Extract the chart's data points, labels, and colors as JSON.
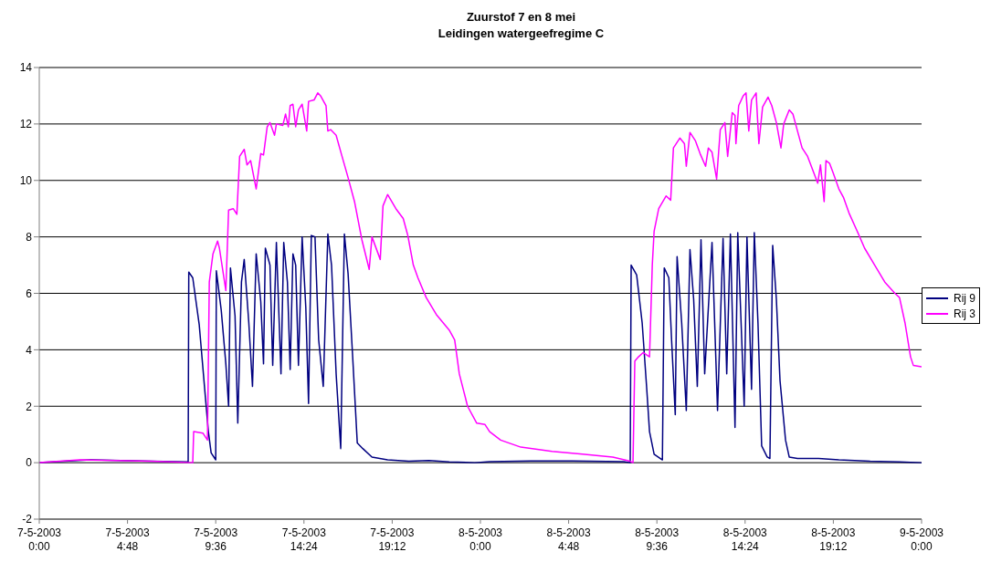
{
  "chart_data": {
    "type": "line",
    "title": "Zuurstof 7 en 8 mei",
    "subtitle": "Leidingen watergeefregime C",
    "xlim": [
      "2003-05-07T00:00",
      "2003-05-09T00:00"
    ],
    "xticks": [
      {
        "value": "2003-05-07T00:00",
        "label": "7-5-2003 0:00"
      },
      {
        "value": "2003-05-07T04:48",
        "label": "7-5-2003 4:48"
      },
      {
        "value": "2003-05-07T09:36",
        "label": "7-5-2003 9:36"
      },
      {
        "value": "2003-05-07T14:24",
        "label": "7-5-2003 14:24"
      },
      {
        "value": "2003-05-07T19:12",
        "label": "7-5-2003 19:12"
      },
      {
        "value": "2003-05-08T00:00",
        "label": "8-5-2003 0:00"
      },
      {
        "value": "2003-05-08T04:48",
        "label": "8-5-2003 4:48"
      },
      {
        "value": "2003-05-08T09:36",
        "label": "8-5-2003 9:36"
      },
      {
        "value": "2003-05-08T14:24",
        "label": "8-5-2003 14:24"
      },
      {
        "value": "2003-05-08T19:12",
        "label": "8-5-2003 19:12"
      },
      {
        "value": "2003-05-09T00:00",
        "label": "9-5-2003 0:00"
      }
    ],
    "ylim": [
      -2,
      14
    ],
    "yticks": [
      -2,
      0,
      2,
      4,
      6,
      8,
      10,
      12,
      14
    ],
    "grid": "y",
    "legend": "right",
    "series": [
      {
        "name": "Rij 9",
        "color": "#000080",
        "x": [
          "2003-05-07T00:00",
          "2003-05-07T02:48",
          "2003-05-07T06:06",
          "2003-05-07T08:06",
          "2003-05-07T08:08",
          "2003-05-07T08:21",
          "2003-05-07T08:42",
          "2003-05-07T09:00",
          "2003-05-07T09:12",
          "2003-05-07T09:21",
          "2003-05-07T09:36",
          "2003-05-07T09:38",
          "2003-05-07T09:54",
          "2003-05-07T10:09",
          "2003-05-07T10:18",
          "2003-05-07T10:24",
          "2003-05-07T10:39",
          "2003-05-07T10:48",
          "2003-05-07T11:00",
          "2003-05-07T11:09",
          "2003-05-07T11:24",
          "2003-05-07T11:36",
          "2003-05-07T11:48",
          "2003-05-07T12:03",
          "2003-05-07T12:12",
          "2003-05-07T12:18",
          "2003-05-07T12:33",
          "2003-05-07T12:42",
          "2003-05-07T12:54",
          "2003-05-07T13:09",
          "2003-05-07T13:18",
          "2003-05-07T13:30",
          "2003-05-07T13:39",
          "2003-05-07T13:48",
          "2003-05-07T13:57",
          "2003-05-07T14:06",
          "2003-05-07T14:18",
          "2003-05-07T14:30",
          "2003-05-07T14:39",
          "2003-05-07T14:48",
          "2003-05-07T15:00",
          "2003-05-07T15:12",
          "2003-05-07T15:27",
          "2003-05-07T15:42",
          "2003-05-07T15:54",
          "2003-05-07T16:09",
          "2003-05-07T16:24",
          "2003-05-07T16:36",
          "2003-05-07T16:48",
          "2003-05-07T17:03",
          "2003-05-07T17:18",
          "2003-05-07T17:36",
          "2003-05-07T18:06",
          "2003-05-07T18:57",
          "2003-05-07T20:06",
          "2003-05-07T21:12",
          "2003-05-07T22:18",
          "2003-05-07T23:42",
          "2003-05-08T00:30",
          "2003-05-08T02:45",
          "2003-05-08T05:00",
          "2003-05-08T07:48",
          "2003-05-08T08:09",
          "2003-05-08T08:12",
          "2003-05-08T08:30",
          "2003-05-08T08:48",
          "2003-05-08T09:03",
          "2003-05-08T09:12",
          "2003-05-08T09:27",
          "2003-05-08T09:54",
          "2003-05-08T10:00",
          "2003-05-08T10:15",
          "2003-05-08T10:24",
          "2003-05-08T10:36",
          "2003-05-08T10:42",
          "2003-05-08T10:57",
          "2003-05-08T11:12",
          "2003-05-08T11:24",
          "2003-05-08T11:36",
          "2003-05-08T11:48",
          "2003-05-08T12:00",
          "2003-05-08T12:12",
          "2003-05-08T12:36",
          "2003-05-08T12:54",
          "2003-05-08T13:12",
          "2003-05-08T13:24",
          "2003-05-08T13:36",
          "2003-05-08T13:51",
          "2003-05-08T14:00",
          "2003-05-08T14:21",
          "2003-05-08T14:30",
          "2003-05-08T14:45",
          "2003-05-08T14:54",
          "2003-05-08T15:06",
          "2003-05-08T15:18",
          "2003-05-08T15:36",
          "2003-05-08T15:45",
          "2003-05-08T15:54",
          "2003-05-08T16:06",
          "2003-05-08T16:18",
          "2003-05-08T16:36",
          "2003-05-08T16:48",
          "2003-05-08T17:15",
          "2003-05-08T18:24",
          "2003-05-08T19:30",
          "2003-05-08T21:12",
          "2003-05-08T22:48",
          "2003-05-09T00:00"
        ],
        "values": [
          0,
          0.1,
          0.05,
          0.03,
          6.75,
          6.55,
          4.9,
          2.6,
          1.1,
          0.35,
          0.1,
          6.8,
          5.4,
          3.5,
          2.0,
          6.9,
          5.2,
          1.4,
          6.4,
          7.2,
          4.95,
          2.7,
          7.4,
          5.7,
          3.5,
          7.6,
          7.0,
          3.45,
          7.8,
          3.15,
          7.8,
          6.4,
          3.3,
          7.4,
          7.0,
          3.45,
          8.0,
          5.5,
          2.1,
          8.05,
          8.0,
          4.35,
          2.7,
          8.1,
          7.0,
          3.15,
          0.5,
          8.1,
          6.7,
          3.75,
          0.7,
          0.5,
          0.2,
          0.1,
          0.05,
          0.08,
          0.03,
          0,
          0.04,
          0.06,
          0.06,
          0.04,
          0,
          7.0,
          6.65,
          4.95,
          2.6,
          1.1,
          0.3,
          0.1,
          6.9,
          6.55,
          4.35,
          1.7,
          7.3,
          4.95,
          1.85,
          7.55,
          5.8,
          2.7,
          7.9,
          3.15,
          7.8,
          1.85,
          7.95,
          3.15,
          8.1,
          1.25,
          8.15,
          2.0,
          8.0,
          2.6,
          8.15,
          4.95,
          0.6,
          0.2,
          0.15,
          7.7,
          5.8,
          2.9,
          0.8,
          0.2,
          0.15,
          0.15,
          0.1,
          0.05,
          0.03,
          0
        ]
      },
      {
        "name": "Rij 3",
        "color": "#ff00ff",
        "x": [
          "2003-05-07T00:00",
          "2003-05-07T02:12",
          "2003-05-07T06:06",
          "2003-05-07T08:21",
          "2003-05-07T08:24",
          "2003-05-07T08:54",
          "2003-05-07T09:09",
          "2003-05-07T09:15",
          "2003-05-07T09:27",
          "2003-05-07T09:42",
          "2003-05-07T09:48",
          "2003-05-07T10:09",
          "2003-05-07T10:18",
          "2003-05-07T10:33",
          "2003-05-07T10:45",
          "2003-05-07T10:54",
          "2003-05-07T11:09",
          "2003-05-07T11:18",
          "2003-05-07T11:30",
          "2003-05-07T11:48",
          "2003-05-07T12:03",
          "2003-05-07T12:12",
          "2003-05-07T12:24",
          "2003-05-07T12:33",
          "2003-05-07T12:48",
          "2003-05-07T12:54",
          "2003-05-07T13:15",
          "2003-05-07T13:24",
          "2003-05-07T13:33",
          "2003-05-07T13:39",
          "2003-05-07T13:48",
          "2003-05-07T13:57",
          "2003-05-07T14:06",
          "2003-05-07T14:18",
          "2003-05-07T14:33",
          "2003-05-07T14:39",
          "2003-05-07T14:57",
          "2003-05-07T15:09",
          "2003-05-07T15:18",
          "2003-05-07T15:36",
          "2003-05-07T15:42",
          "2003-05-07T15:51",
          "2003-05-07T16:09",
          "2003-05-07T16:27",
          "2003-05-07T16:48",
          "2003-05-07T17:09",
          "2003-05-07T17:33",
          "2003-05-07T17:57",
          "2003-05-07T18:06",
          "2003-05-07T18:33",
          "2003-05-07T18:42",
          "2003-05-07T18:57",
          "2003-05-07T19:24",
          "2003-05-07T19:48",
          "2003-05-07T20:03",
          "2003-05-07T20:21",
          "2003-05-07T20:36",
          "2003-05-07T21:03",
          "2003-05-07T21:36",
          "2003-05-07T22:18",
          "2003-05-07T22:36",
          "2003-05-07T22:51",
          "2003-05-07T23:18",
          "2003-05-07T23:48",
          "2003-05-08T00:15",
          "2003-05-08T00:30",
          "2003-05-08T01:06",
          "2003-05-08T02:12",
          "2003-05-08T03:54",
          "2003-05-08T05:33",
          "2003-05-08T07:12",
          "2003-05-08T08:09",
          "2003-05-08T08:18",
          "2003-05-08T08:24",
          "2003-05-08T08:36",
          "2003-05-08T08:51",
          "2003-05-08T09:12",
          "2003-05-08T09:21",
          "2003-05-08T09:27",
          "2003-05-08T09:42",
          "2003-05-08T10:06",
          "2003-05-08T10:21",
          "2003-05-08T10:30",
          "2003-05-08T10:51",
          "2003-05-08T11:06",
          "2003-05-08T11:12",
          "2003-05-08T11:24",
          "2003-05-08T11:42",
          "2003-05-08T11:57",
          "2003-05-08T12:15",
          "2003-05-08T12:24",
          "2003-05-08T12:36",
          "2003-05-08T12:51",
          "2003-05-08T13:03",
          "2003-05-08T13:18",
          "2003-05-08T13:27",
          "2003-05-08T13:42",
          "2003-05-08T13:51",
          "2003-05-08T13:54",
          "2003-05-08T14:03",
          "2003-05-08T14:18",
          "2003-05-08T14:27",
          "2003-05-08T14:36",
          "2003-05-08T14:45",
          "2003-05-08T15:00",
          "2003-05-08T15:09",
          "2003-05-08T15:21",
          "2003-05-08T15:39",
          "2003-05-08T15:51",
          "2003-05-08T16:06",
          "2003-05-08T16:21",
          "2003-05-08T16:30",
          "2003-05-08T16:48",
          "2003-05-08T17:00",
          "2003-05-08T17:15",
          "2003-05-08T17:30",
          "2003-05-08T17:48",
          "2003-05-08T18:21",
          "2003-05-08T18:30",
          "2003-05-08T18:42",
          "2003-05-08T18:48",
          "2003-05-08T19:00",
          "2003-05-08T19:12",
          "2003-05-08T19:30",
          "2003-05-08T19:45",
          "2003-05-08T20:03",
          "2003-05-08T20:30",
          "2003-05-08T20:54",
          "2003-05-08T21:27",
          "2003-05-08T22:00",
          "2003-05-08T22:33",
          "2003-05-08T22:48",
          "2003-05-08T23:06",
          "2003-05-08T23:24",
          "2003-05-08T23:33",
          "2003-05-09T00:00"
        ],
        "values": [
          0,
          0.1,
          0.05,
          0,
          1.1,
          1.05,
          0.8,
          6.4,
          7.4,
          7.85,
          7.6,
          6.1,
          8.95,
          9.0,
          8.8,
          10.85,
          11.1,
          10.55,
          10.7,
          9.7,
          10.95,
          10.9,
          11.9,
          12.05,
          11.6,
          12.0,
          11.95,
          12.35,
          11.9,
          12.65,
          12.7,
          11.9,
          12.5,
          12.7,
          11.75,
          12.8,
          12.85,
          13.1,
          13.0,
          12.65,
          11.75,
          11.8,
          11.6,
          10.9,
          10.1,
          9.25,
          7.9,
          6.85,
          8.0,
          7.2,
          9.1,
          9.5,
          9.0,
          8.65,
          8.05,
          7.0,
          6.55,
          5.85,
          5.25,
          4.7,
          4.35,
          3.15,
          2.0,
          1.4,
          1.35,
          1.1,
          0.8,
          0.55,
          0.4,
          0.3,
          0.2,
          0.05,
          0,
          3.6,
          3.75,
          3.9,
          3.75,
          7.0,
          8.2,
          9.0,
          9.45,
          9.3,
          11.15,
          11.5,
          11.3,
          10.5,
          11.7,
          11.4,
          10.95,
          10.5,
          11.15,
          11.0,
          10.05,
          11.8,
          12.05,
          10.85,
          12.4,
          12.3,
          11.3,
          12.65,
          13.0,
          13.1,
          11.75,
          12.85,
          13.1,
          11.3,
          12.6,
          12.95,
          12.65,
          12.05,
          11.15,
          12.0,
          12.5,
          12.35,
          11.75,
          11.15,
          10.85,
          9.9,
          10.55,
          9.25,
          10.7,
          10.6,
          10.25,
          9.7,
          9.4,
          8.85,
          8.2,
          7.6,
          7.0,
          6.4,
          6.0,
          5.85,
          4.95,
          3.75,
          3.45,
          3.4
        ]
      }
    ]
  }
}
